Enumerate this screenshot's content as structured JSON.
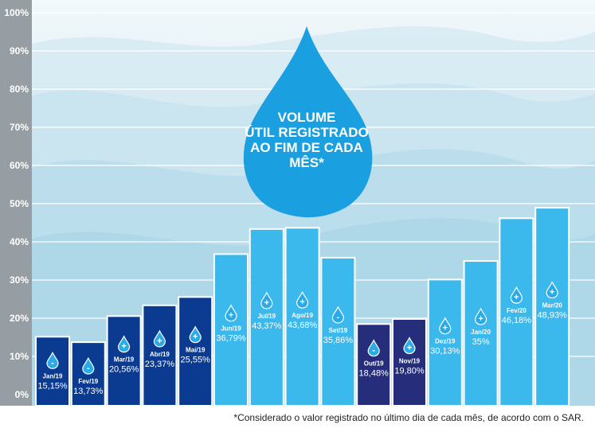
{
  "chart_data": {
    "type": "bar",
    "title_lines": [
      "VOLUME",
      "ÚTIL REGISTRADO",
      "AO FIM DE CADA",
      "MÊS*"
    ],
    "y_ticks": [
      "0%",
      "10%",
      "20%",
      "30%",
      "40%",
      "50%",
      "60%",
      "70%",
      "80%",
      "90%",
      "100%"
    ],
    "ylim": [
      0,
      100
    ],
    "grid": true,
    "categories": [
      "Jan/19",
      "Fev/19",
      "Mar/19",
      "Abr/19",
      "Mai/19",
      "Jun/19",
      "Jul/19",
      "Ago/19",
      "Set/19",
      "Out/19",
      "Nov/19",
      "Dez/19",
      "Jan/20",
      "Fev/20",
      "Mar/20"
    ],
    "values": [
      15.15,
      13.73,
      20.56,
      23.37,
      25.55,
      36.79,
      43.37,
      43.68,
      35.86,
      18.48,
      19.8,
      30.13,
      35.0,
      46.18,
      48.93
    ],
    "value_labels": [
      "15,15%",
      "13,73%",
      "20,56%",
      "23,37%",
      "25,55%",
      "36,79%",
      "43,37%",
      "43,68%",
      "35,86%",
      "18,48%",
      "19,80%",
      "30,13%",
      "35%",
      "46,18%",
      "48,93%"
    ],
    "trend_signs": [
      "-",
      "-",
      "+",
      "+",
      "+",
      "+",
      "+",
      "+",
      "-",
      "-",
      "+",
      "+",
      "+",
      "+",
      "+"
    ],
    "colors": {
      "2019_first_half": "#0b3b91",
      "2019_mid": "#3bb8ec",
      "2019_late": "#262d7a",
      "2019_2020": "#3bb8ec",
      "drop": "#1a9fe0",
      "axis_band": "#979ea3",
      "water_light": "#eef6fa",
      "water_mid": "#cfe6f0",
      "water_dark": "#9bcde2"
    }
  },
  "footnote": "*Considerado o valor registrado no último dia de cada mês, de acordo com o SAR."
}
